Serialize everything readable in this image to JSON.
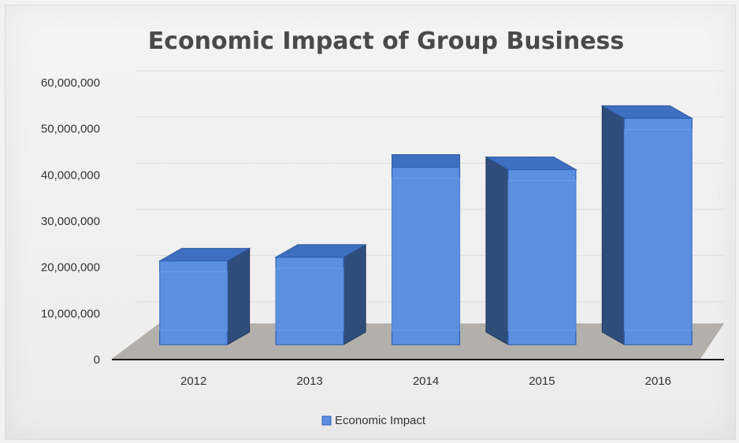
{
  "chart_data": {
    "type": "bar",
    "title": "Economic Impact of Group Business",
    "categories": [
      "2012",
      "2013",
      "2014",
      "2015",
      "2016"
    ],
    "series": [
      {
        "name": "Economic Impact",
        "values": [
          19500000,
          20300000,
          39800000,
          39300000,
          50400000
        ]
      }
    ],
    "ylim": [
      0,
      60000000
    ],
    "yticks": [
      "0",
      "10,000,000",
      "20,000,000",
      "30,000,000",
      "40,000,000",
      "50,000,000",
      "60,000,000"
    ],
    "grid": true,
    "three_d": true,
    "legend_position": "bottom",
    "colors": {
      "bar_front": "#5b8fe0",
      "bar_side": "#2f4d7a",
      "bar_top": "#3f6fc0",
      "floor": "#a8a4a0",
      "axis": "#1a1a1a"
    }
  }
}
